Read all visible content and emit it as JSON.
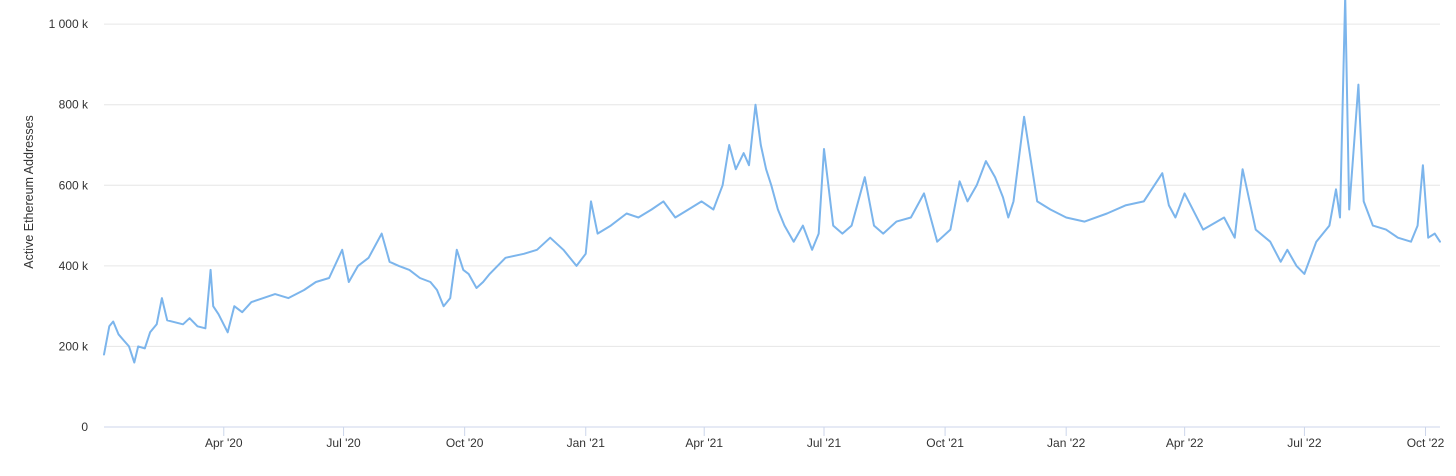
{
  "chart_data": {
    "type": "line",
    "title": "",
    "xlabel": "",
    "ylabel": "Active Ethereum Addresses",
    "ylim": [
      0,
      1060000
    ],
    "xlim": [
      "2020-01-01",
      "2022-10-12"
    ],
    "grid": "horizontal",
    "legend": "none",
    "y_ticks": [
      {
        "value": 0,
        "label": "0"
      },
      {
        "value": 200000,
        "label": "200 k"
      },
      {
        "value": 400000,
        "label": "400 k"
      },
      {
        "value": 600000,
        "label": "600 k"
      },
      {
        "value": 800000,
        "label": "800 k"
      },
      {
        "value": 1000000,
        "label": "1 000 k"
      }
    ],
    "x_ticks": [
      {
        "date": "2020-04-01",
        "label": "Apr '20"
      },
      {
        "date": "2020-07-01",
        "label": "Jul '20"
      },
      {
        "date": "2020-10-01",
        "label": "Oct '20"
      },
      {
        "date": "2021-01-01",
        "label": "Jan '21"
      },
      {
        "date": "2021-04-01",
        "label": "Apr '21"
      },
      {
        "date": "2021-07-01",
        "label": "Jul '21"
      },
      {
        "date": "2021-10-01",
        "label": "Oct '21"
      },
      {
        "date": "2022-01-01",
        "label": "Jan '22"
      },
      {
        "date": "2022-04-01",
        "label": "Apr '22"
      },
      {
        "date": "2022-07-01",
        "label": "Jul '22"
      },
      {
        "date": "2022-10-01",
        "label": "Oct '22"
      }
    ],
    "series": [
      {
        "color": "#7cb5ec",
        "x": [
          "2020-01-01",
          "2020-01-05",
          "2020-01-08",
          "2020-01-12",
          "2020-01-16",
          "2020-01-20",
          "2020-01-24",
          "2020-01-27",
          "2020-02-01",
          "2020-02-05",
          "2020-02-10",
          "2020-02-14",
          "2020-02-18",
          "2020-02-24",
          "2020-03-01",
          "2020-03-06",
          "2020-03-12",
          "2020-03-18",
          "2020-03-22",
          "2020-03-24",
          "2020-03-28",
          "2020-04-04",
          "2020-04-09",
          "2020-04-15",
          "2020-04-22",
          "2020-05-01",
          "2020-05-10",
          "2020-05-20",
          "2020-06-01",
          "2020-06-10",
          "2020-06-20",
          "2020-06-30",
          "2020-07-05",
          "2020-07-12",
          "2020-07-20",
          "2020-07-30",
          "2020-08-05",
          "2020-08-12",
          "2020-08-20",
          "2020-08-28",
          "2020-09-05",
          "2020-09-10",
          "2020-09-15",
          "2020-09-20",
          "2020-09-25",
          "2020-09-30",
          "2020-10-04",
          "2020-10-10",
          "2020-10-15",
          "2020-10-20",
          "2020-11-01",
          "2020-11-15",
          "2020-11-25",
          "2020-12-05",
          "2020-12-15",
          "2020-12-25",
          "2021-01-01",
          "2021-01-05",
          "2021-01-10",
          "2021-01-20",
          "2021-02-01",
          "2021-02-10",
          "2021-02-20",
          "2021-03-01",
          "2021-03-10",
          "2021-03-20",
          "2021-03-30",
          "2021-04-08",
          "2021-04-15",
          "2021-04-20",
          "2021-04-25",
          "2021-05-01",
          "2021-05-05",
          "2021-05-10",
          "2021-05-14",
          "2021-05-18",
          "2021-05-22",
          "2021-05-27",
          "2021-06-01",
          "2021-06-08",
          "2021-06-15",
          "2021-06-22",
          "2021-06-27",
          "2021-07-01",
          "2021-07-08",
          "2021-07-15",
          "2021-07-22",
          "2021-08-01",
          "2021-08-08",
          "2021-08-15",
          "2021-08-25",
          "2021-09-05",
          "2021-09-15",
          "2021-09-25",
          "2021-10-05",
          "2021-10-12",
          "2021-10-18",
          "2021-10-25",
          "2021-11-01",
          "2021-11-08",
          "2021-11-14",
          "2021-11-18",
          "2021-11-22",
          "2021-11-30",
          "2021-12-10",
          "2021-12-20",
          "2022-01-01",
          "2022-01-15",
          "2022-02-01",
          "2022-02-15",
          "2022-03-01",
          "2022-03-15",
          "2022-03-20",
          "2022-03-25",
          "2022-04-01",
          "2022-04-15",
          "2022-05-01",
          "2022-05-09",
          "2022-05-15",
          "2022-05-25",
          "2022-06-05",
          "2022-06-13",
          "2022-06-18",
          "2022-06-25",
          "2022-07-01",
          "2022-07-10",
          "2022-07-20",
          "2022-07-25",
          "2022-07-28",
          "2022-08-01",
          "2022-08-04",
          "2022-08-07",
          "2022-08-11",
          "2022-08-15",
          "2022-08-22",
          "2022-09-01",
          "2022-09-10",
          "2022-09-20",
          "2022-09-25",
          "2022-09-29",
          "2022-10-03",
          "2022-10-08",
          "2022-10-12"
        ],
        "values": [
          180000,
          250000,
          262000,
          230000,
          215000,
          200000,
          160000,
          200000,
          195000,
          235000,
          255000,
          320000,
          265000,
          260000,
          255000,
          270000,
          250000,
          245000,
          390000,
          300000,
          280000,
          235000,
          300000,
          285000,
          310000,
          320000,
          330000,
          320000,
          340000,
          360000,
          370000,
          440000,
          360000,
          400000,
          420000,
          480000,
          410000,
          400000,
          390000,
          370000,
          360000,
          340000,
          300000,
          320000,
          440000,
          390000,
          380000,
          345000,
          360000,
          380000,
          420000,
          430000,
          440000,
          470000,
          440000,
          400000,
          430000,
          560000,
          480000,
          500000,
          530000,
          520000,
          540000,
          560000,
          520000,
          540000,
          560000,
          540000,
          600000,
          700000,
          640000,
          680000,
          650000,
          800000,
          700000,
          640000,
          600000,
          540000,
          500000,
          460000,
          500000,
          440000,
          480000,
          690000,
          500000,
          480000,
          500000,
          620000,
          500000,
          480000,
          510000,
          520000,
          580000,
          460000,
          490000,
          610000,
          560000,
          600000,
          660000,
          620000,
          570000,
          520000,
          560000,
          770000,
          560000,
          540000,
          520000,
          510000,
          530000,
          550000,
          560000,
          630000,
          550000,
          520000,
          580000,
          490000,
          520000,
          470000,
          640000,
          490000,
          460000,
          410000,
          440000,
          400000,
          380000,
          460000,
          500000,
          590000,
          520000,
          1070000,
          540000,
          670000,
          850000,
          560000,
          500000,
          490000,
          470000,
          460000,
          500000,
          650000,
          470000,
          480000,
          460000
        ]
      }
    ]
  }
}
